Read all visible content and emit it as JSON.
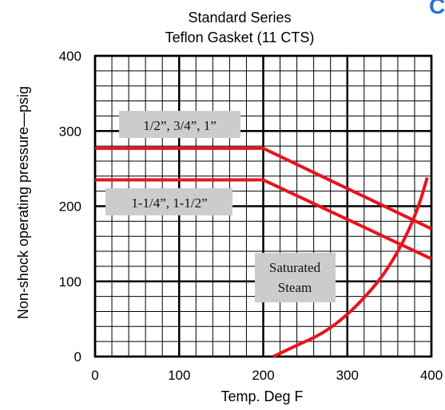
{
  "corner_glyph": "C",
  "chart_data": {
    "type": "line",
    "title": "Standard Series",
    "subtitle": "Teflon Gasket (11 CTS)",
    "xlabel": "Temp. Deg F",
    "ylabel": "Non-shock operating pressure—psig",
    "xlim": [
      0,
      400
    ],
    "ylim": [
      0,
      400
    ],
    "xticks": [
      0,
      100,
      200,
      300,
      400
    ],
    "yticks": [
      0,
      100,
      200,
      300,
      400
    ],
    "grid": true,
    "grid_minor_step": 20,
    "grid_major_step": 100,
    "line_color": "#e8141c",
    "label_box_color": "#cccccc",
    "series": [
      {
        "name": "1/2”, 3/4”, 1”",
        "x": [
          0,
          200,
          400
        ],
        "y": [
          277,
          277,
          170
        ]
      },
      {
        "name": "1-1/4”, 1-1/2”",
        "x": [
          0,
          200,
          400
        ],
        "y": [
          235,
          235,
          130
        ]
      },
      {
        "name": "Saturated Steam",
        "x": [
          212,
          240,
          270,
          300,
          330,
          350,
          370,
          385,
          395
        ],
        "y": [
          0,
          15,
          30,
          55,
          90,
          120,
          160,
          200,
          238
        ]
      }
    ]
  }
}
